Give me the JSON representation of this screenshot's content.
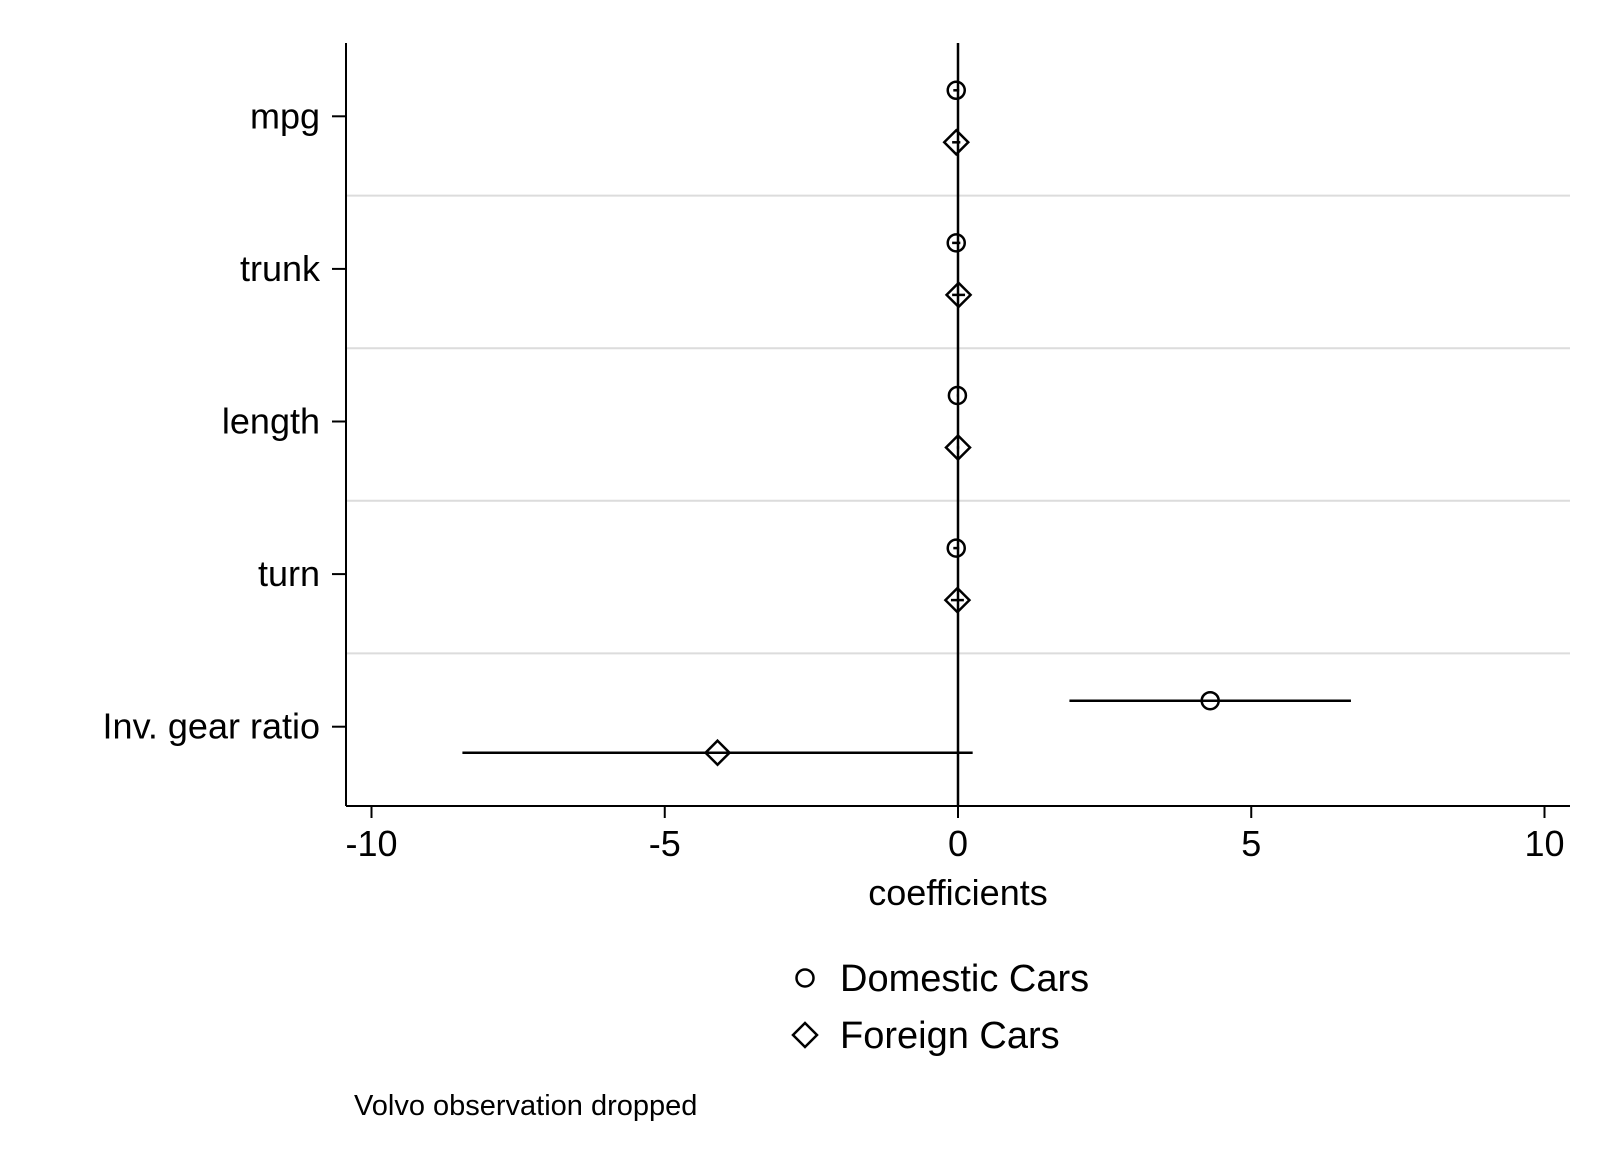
{
  "chart_data": {
    "type": "coefficient-plot",
    "orientation": "horizontal",
    "title": "",
    "xlabel": "coefficients",
    "ylabel": "",
    "xlim": [
      -10.4,
      10.4
    ],
    "xticks": [
      -10,
      -5,
      0,
      5,
      10
    ],
    "tick_labels": [
      "-10",
      "-5",
      "0",
      "5",
      "10"
    ],
    "reference_line": 0,
    "grid": "horizontal separators between categories",
    "categories": [
      "mpg",
      "trunk",
      "length",
      "turn",
      "Inv. gear ratio"
    ],
    "series": [
      {
        "name": "Domestic Cars",
        "marker": "circle",
        "points": [
          {
            "category": "mpg",
            "estimate": -0.03,
            "ci": [
              -0.08,
              0.02
            ]
          },
          {
            "category": "trunk",
            "estimate": -0.03,
            "ci": [
              -0.1,
              0.04
            ]
          },
          {
            "category": "length",
            "estimate": -0.01,
            "ci": [
              -0.02,
              0.0
            ]
          },
          {
            "category": "turn",
            "estimate": -0.03,
            "ci": [
              -0.08,
              0.02
            ]
          },
          {
            "category": "Inv. gear ratio",
            "estimate": 4.3,
            "ci": [
              1.9,
              6.7
            ]
          }
        ]
      },
      {
        "name": "Foreign Cars",
        "marker": "diamond",
        "points": [
          {
            "category": "mpg",
            "estimate": -0.03,
            "ci": [
              -0.1,
              0.04
            ]
          },
          {
            "category": "trunk",
            "estimate": 0.01,
            "ci": [
              -0.1,
              0.12
            ]
          },
          {
            "category": "length",
            "estimate": 0.0,
            "ci": [
              -0.02,
              0.02
            ]
          },
          {
            "category": "turn",
            "estimate": -0.01,
            "ci": [
              -0.12,
              0.1
            ]
          },
          {
            "category": "Inv. gear ratio",
            "estimate": -4.1,
            "ci": [
              -8.45,
              0.25
            ]
          }
        ]
      }
    ],
    "legend": {
      "position": "bottom",
      "entries": [
        {
          "label": "Domestic Cars",
          "marker": "circle"
        },
        {
          "label": "Foreign Cars",
          "marker": "diamond"
        }
      ]
    },
    "note": "Volvo observation dropped"
  }
}
